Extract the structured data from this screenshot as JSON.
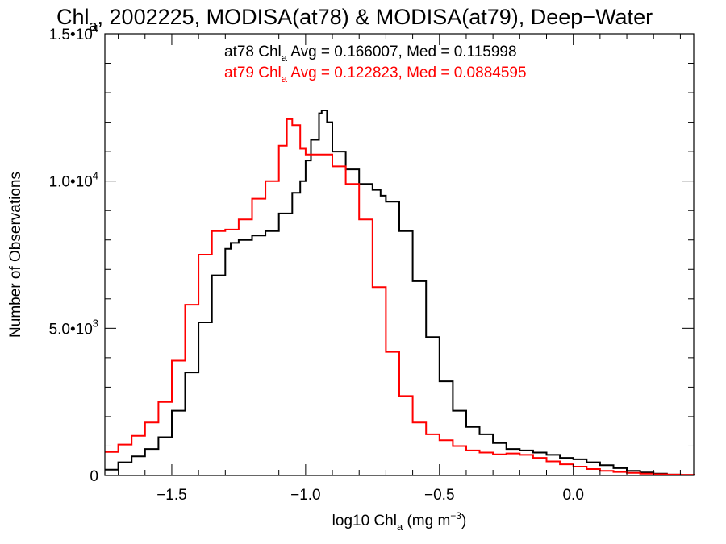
{
  "title_parts": {
    "prefix": "Chl",
    "sub": "a",
    "rest": ", 2002225, MODISA(at78) & MODISA(at79), Deep−Water"
  },
  "chart_data": {
    "type": "line",
    "xlabel_parts": {
      "prefix": "log10 Chl",
      "sub": "a",
      "mid": " (mg m",
      "sup": "−3",
      "suffix": ")"
    },
    "ylabel": "Number of Observations",
    "xlim": [
      -1.75,
      0.45
    ],
    "ylim": [
      0,
      15000
    ],
    "grid": false,
    "x_ticks": [
      {
        "value": -1.5,
        "label": "−1.5"
      },
      {
        "value": -1.0,
        "label": "−1.0"
      },
      {
        "value": -0.5,
        "label": "−0.5"
      },
      {
        "value": 0.0,
        "label": "0.0"
      }
    ],
    "y_ticks": [
      {
        "value": 0,
        "mant": "0",
        "exp": ""
      },
      {
        "value": 5000,
        "mant": "5.0•10",
        "exp": "3"
      },
      {
        "value": 10000,
        "mant": "1.0•10",
        "exp": "4"
      },
      {
        "value": 15000,
        "mant": "1.5•10",
        "exp": "4"
      }
    ],
    "annotations": [
      {
        "prefix": "at78 Chl",
        "sub": "a",
        "rest": " Avg = 0.166007, Med = 0.115998",
        "color": "#000000"
      },
      {
        "prefix": "at79 Chl",
        "sub": "a",
        "rest": " Avg = 0.122823, Med = 0.0884595",
        "color": "#ff0000"
      }
    ],
    "series": [
      {
        "color": "#000000",
        "x": [
          -1.75,
          -1.7,
          -1.65,
          -1.6,
          -1.55,
          -1.5,
          -1.45,
          -1.4,
          -1.35,
          -1.3,
          -1.28,
          -1.25,
          -1.2,
          -1.15,
          -1.1,
          -1.05,
          -1.02,
          -1.0,
          -0.98,
          -0.95,
          -0.94,
          -0.92,
          -0.9,
          -0.85,
          -0.8,
          -0.75,
          -0.72,
          -0.7,
          -0.65,
          -0.6,
          -0.55,
          -0.5,
          -0.45,
          -0.4,
          -0.35,
          -0.3,
          -0.25,
          -0.2,
          -0.15,
          -0.1,
          -0.05,
          0.0,
          0.05,
          0.1,
          0.15,
          0.2,
          0.25,
          0.3,
          0.35,
          0.4,
          0.45
        ],
        "y": [
          200,
          450,
          650,
          900,
          1300,
          2200,
          3500,
          5200,
          6800,
          7700,
          7900,
          8000,
          8150,
          8300,
          8900,
          9600,
          10000,
          10700,
          11400,
          12300,
          12400,
          12000,
          11000,
          10400,
          9900,
          9700,
          9500,
          9300,
          8300,
          6600,
          4700,
          3200,
          2200,
          1650,
          1400,
          1100,
          900,
          850,
          780,
          700,
          600,
          550,
          450,
          350,
          250,
          160,
          100,
          60,
          30,
          20,
          10
        ]
      },
      {
        "color": "#ff0000",
        "x": [
          -1.75,
          -1.7,
          -1.65,
          -1.6,
          -1.55,
          -1.5,
          -1.45,
          -1.4,
          -1.35,
          -1.3,
          -1.25,
          -1.2,
          -1.15,
          -1.1,
          -1.07,
          -1.05,
          -1.02,
          -1.0,
          -0.95,
          -0.9,
          -0.85,
          -0.8,
          -0.75,
          -0.7,
          -0.65,
          -0.6,
          -0.55,
          -0.5,
          -0.45,
          -0.4,
          -0.35,
          -0.3,
          -0.25,
          -0.2,
          -0.15,
          -0.1,
          -0.05,
          0.0,
          0.05,
          0.1,
          0.15,
          0.2,
          0.25,
          0.3,
          0.35,
          0.4,
          0.45
        ],
        "y": [
          800,
          1050,
          1350,
          1800,
          2500,
          3900,
          5800,
          7500,
          8300,
          8350,
          8700,
          9400,
          10000,
          11200,
          12100,
          11900,
          11100,
          10900,
          10900,
          10500,
          9900,
          8700,
          6400,
          4200,
          2700,
          1800,
          1400,
          1200,
          1000,
          850,
          780,
          720,
          750,
          700,
          600,
          480,
          380,
          300,
          220,
          160,
          120,
          90,
          60,
          40,
          30,
          20,
          10
        ]
      }
    ]
  }
}
